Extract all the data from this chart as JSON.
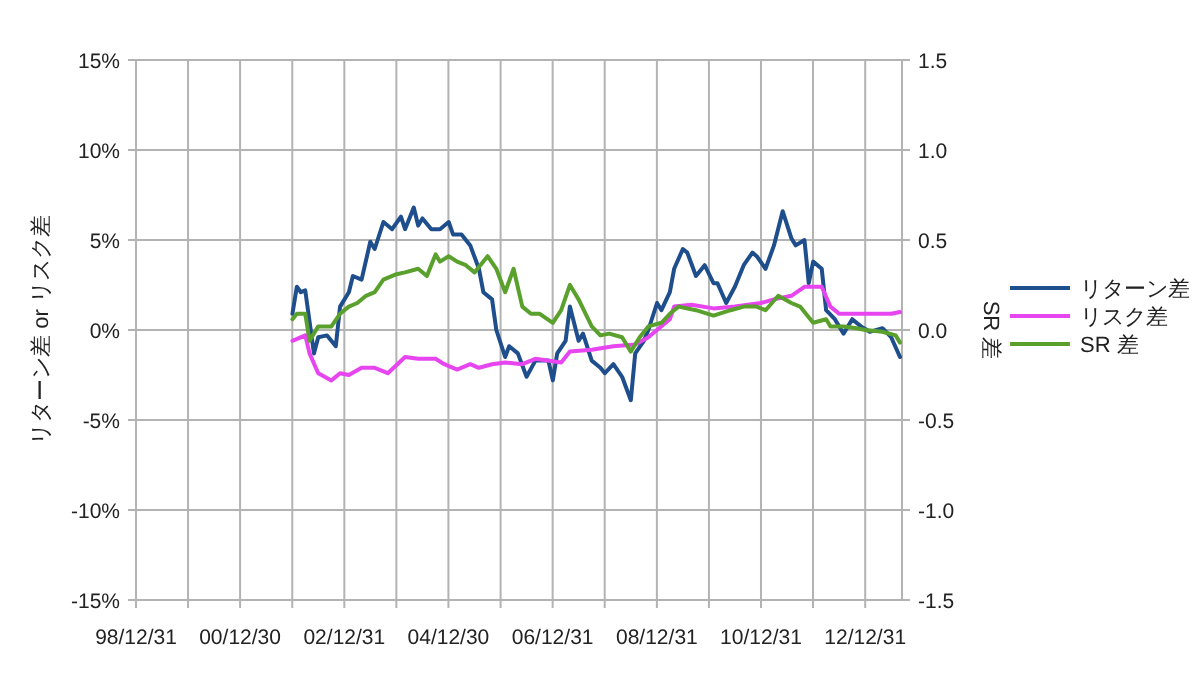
{
  "chart_data": {
    "type": "line",
    "ylabel": "リターン差 or リスク差",
    "y2label": "SR 差",
    "legend": "right",
    "grid": true,
    "xlim": [
      "1998-12-31",
      "2013-09-15"
    ],
    "xticks": [
      {
        "value": "1998-12-31",
        "label": "98/12/31"
      },
      {
        "value": "1999-12-31",
        "label": null
      },
      {
        "value": "2000-12-30",
        "label": "00/12/30"
      },
      {
        "value": "2001-12-31",
        "label": null
      },
      {
        "value": "2002-12-31",
        "label": "02/12/31"
      },
      {
        "value": "2003-12-31",
        "label": null
      },
      {
        "value": "2004-12-30",
        "label": "04/12/30"
      },
      {
        "value": "2005-12-31",
        "label": null
      },
      {
        "value": "2006-12-31",
        "label": "06/12/31"
      },
      {
        "value": "2007-12-31",
        "label": null
      },
      {
        "value": "2008-12-31",
        "label": "08/12/31"
      },
      {
        "value": "2009-12-31",
        "label": null
      },
      {
        "value": "2010-12-31",
        "label": "10/12/31"
      },
      {
        "value": "2011-12-31",
        "label": null
      },
      {
        "value": "2012-12-31",
        "label": "12/12/31"
      }
    ],
    "ylim": [
      -15,
      15
    ],
    "yticks": [
      {
        "value": -15,
        "label": "-15%"
      },
      {
        "value": -10,
        "label": "-10%"
      },
      {
        "value": -5,
        "label": "-5%"
      },
      {
        "value": 0,
        "label": "0%"
      },
      {
        "value": 5,
        "label": "5%"
      },
      {
        "value": 10,
        "label": "10%"
      },
      {
        "value": 15,
        "label": "15%"
      }
    ],
    "y2lim": [
      -1.5,
      1.5
    ],
    "y2ticks": [
      {
        "value": -1.5,
        "label": "-1.5"
      },
      {
        "value": -1,
        "label": "-1.0"
      },
      {
        "value": -0.5,
        "label": "-0.5"
      },
      {
        "value": 0,
        "label": "0.0"
      },
      {
        "value": 0.5,
        "label": "0.5"
      },
      {
        "value": 1,
        "label": "1.0"
      },
      {
        "value": 1.5,
        "label": "1.5"
      }
    ],
    "series": [
      {
        "name": "リターン差",
        "color": "#1f4e8c",
        "x": [
          "2002-01",
          "2002-02",
          "2002-03",
          "2002-04",
          "2002-06",
          "2002-07",
          "2002-09",
          "2002-11",
          "2002-12",
          "2003-02",
          "2003-03",
          "2003-05",
          "2003-07",
          "2003-08",
          "2003-10",
          "2003-12",
          "2004-02",
          "2004-03",
          "2004-05",
          "2004-06",
          "2004-07",
          "2004-09",
          "2004-11",
          "2005-01",
          "2005-02",
          "2005-04",
          "2005-06",
          "2005-08",
          "2005-09",
          "2005-11",
          "2005-12",
          "2006-02",
          "2006-03",
          "2006-05",
          "2006-07",
          "2006-09",
          "2006-10",
          "2006-12",
          "2007-01",
          "2007-02",
          "2007-04",
          "2007-05",
          "2007-07",
          "2007-08",
          "2007-10",
          "2007-12",
          "2008-01",
          "2008-03",
          "2008-05",
          "2008-07",
          "2008-08",
          "2008-10",
          "2008-11",
          "2009-01",
          "2009-02",
          "2009-04",
          "2009-05",
          "2009-07",
          "2009-08",
          "2009-10",
          "2009-12",
          "2010-02",
          "2010-03",
          "2010-05",
          "2010-07",
          "2010-09",
          "2010-11",
          "2010-12",
          "2011-02",
          "2011-04",
          "2011-06",
          "2011-08",
          "2011-09",
          "2011-11",
          "2011-12",
          "2012-01",
          "2012-03",
          "2012-04",
          "2012-06",
          "2012-08",
          "2012-10",
          "2012-12",
          "2013-02",
          "2013-05",
          "2013-07",
          "2013-09"
        ],
        "values": [
          0.9,
          2.4,
          2.1,
          2.2,
          -1.3,
          -0.4,
          -0.3,
          -0.9,
          1.3,
          2.1,
          3.0,
          2.8,
          4.9,
          4.5,
          6.0,
          5.6,
          6.3,
          5.6,
          6.8,
          5.8,
          6.2,
          5.6,
          5.6,
          6.0,
          5.3,
          5.3,
          4.7,
          3.4,
          2.1,
          1.7,
          0,
          -1.5,
          -0.9,
          -1.3,
          -2.6,
          -1.7,
          -1.7,
          -1.7,
          -2.8,
          -1.3,
          -0.6,
          1.3,
          -0.6,
          -0.2,
          -1.7,
          -2.1,
          -2.4,
          -1.9,
          -2.6,
          -3.9,
          -1.3,
          -0.6,
          0,
          1.5,
          1.1,
          2.1,
          3.4,
          4.5,
          4.3,
          3.0,
          3.6,
          2.6,
          2.6,
          1.5,
          2.4,
          3.6,
          4.3,
          4.1,
          3.4,
          4.7,
          6.6,
          5.1,
          4.7,
          5.0,
          2.6,
          3.8,
          3.4,
          1.1,
          0.6,
          -0.2,
          0.6,
          0.2,
          -0.1,
          0.1,
          -0.4,
          -1.5
        ]
      },
      {
        "name": "リスク差",
        "color": "#e645f0",
        "x": [
          "2002-01",
          "2002-04",
          "2002-05",
          "2002-07",
          "2002-10",
          "2002-12",
          "2003-02",
          "2003-05",
          "2003-08",
          "2003-11",
          "2004-03",
          "2004-06",
          "2004-10",
          "2004-12",
          "2005-03",
          "2005-06",
          "2005-08",
          "2005-11",
          "2006-02",
          "2006-06",
          "2006-09",
          "2007-03",
          "2007-05",
          "2007-10",
          "2008-03",
          "2008-08",
          "2008-11",
          "2009-04",
          "2009-05",
          "2009-09",
          "2010-02",
          "2010-07",
          "2011-01",
          "2011-04",
          "2011-08",
          "2011-11",
          "2012-03",
          "2012-05",
          "2012-07",
          "2013-01",
          "2013-07",
          "2013-09"
        ],
        "values": [
          -0.6,
          -0.3,
          -1.3,
          -2.4,
          -2.8,
          -2.4,
          -2.5,
          -2.1,
          -2.1,
          -2.4,
          -1.5,
          -1.6,
          -1.6,
          -1.9,
          -2.2,
          -1.9,
          -2.1,
          -1.9,
          -1.8,
          -1.9,
          -1.6,
          -1.8,
          -1.2,
          -1.1,
          -0.9,
          -0.8,
          -0.4,
          0.6,
          1.3,
          1.4,
          1.2,
          1.3,
          1.5,
          1.7,
          1.9,
          2.4,
          2.4,
          1.3,
          0.9,
          0.9,
          0.9,
          1.0
        ]
      },
      {
        "name": "SR 差",
        "color": "#5aa02c",
        "axis": "y2",
        "x": [
          "2002-01",
          "2002-02",
          "2002-04",
          "2002-05",
          "2002-07",
          "2002-10",
          "2002-12",
          "2003-02",
          "2003-04",
          "2003-06",
          "2003-08",
          "2003-10",
          "2004-01",
          "2004-03",
          "2004-06",
          "2004-08",
          "2004-10",
          "2004-11",
          "2005-01",
          "2005-03",
          "2005-05",
          "2005-07",
          "2005-10",
          "2005-12",
          "2006-02",
          "2006-04",
          "2006-06",
          "2006-08",
          "2006-10",
          "2007-01",
          "2007-03",
          "2007-05",
          "2007-07",
          "2007-10",
          "2007-12",
          "2008-02",
          "2008-05",
          "2008-07",
          "2008-09",
          "2008-11",
          "2009-02",
          "2009-04",
          "2009-06",
          "2009-10",
          "2010-02",
          "2010-06",
          "2010-09",
          "2010-12",
          "2011-02",
          "2011-05",
          "2011-08",
          "2011-10",
          "2012-01",
          "2012-04",
          "2012-05",
          "2012-08",
          "2012-11",
          "2013-01",
          "2013-05",
          "2013-08",
          "2013-09"
        ],
        "values": [
          0.06,
          0.09,
          0.09,
          -0.06,
          0.02,
          0.02,
          0.09,
          0.13,
          0.15,
          0.19,
          0.21,
          0.28,
          0.31,
          0.32,
          0.34,
          0.3,
          0.42,
          0.38,
          0.41,
          0.38,
          0.36,
          0.32,
          0.41,
          0.34,
          0.21,
          0.34,
          0.13,
          0.09,
          0.09,
          0.04,
          0.11,
          0.25,
          0.17,
          0.02,
          -0.03,
          -0.02,
          -0.04,
          -0.12,
          -0.04,
          0.02,
          0.04,
          0.09,
          0.13,
          0.11,
          0.08,
          0.11,
          0.13,
          0.13,
          0.11,
          0.19,
          0.15,
          0.13,
          0.04,
          0.06,
          0.02,
          0.02,
          0.01,
          0.0,
          -0.01,
          -0.03,
          -0.07
        ]
      }
    ]
  }
}
